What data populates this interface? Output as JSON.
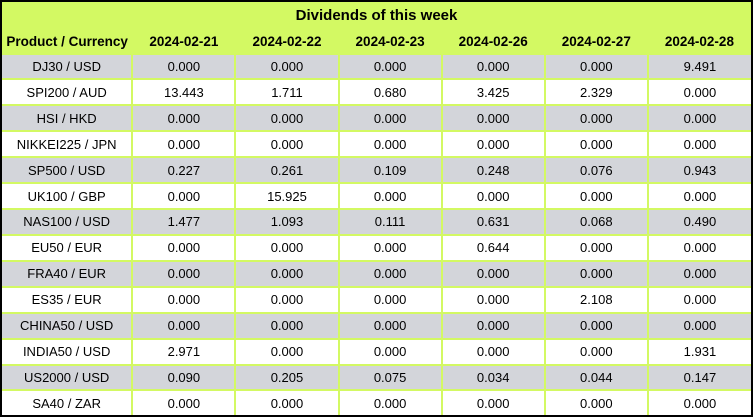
{
  "title": "Dividends of this week",
  "colors": {
    "header_bg": "#d3f963",
    "grid": "#d3f963",
    "row_alt_bg": "#d3d5da",
    "row_bg": "#ffffff",
    "outer_border": "#000000",
    "text": "#000000"
  },
  "table": {
    "columns": [
      "Product / Currency",
      "2024-02-21",
      "2024-02-22",
      "2024-02-23",
      "2024-02-26",
      "2024-02-27",
      "2024-02-28"
    ],
    "rows": [
      {
        "product": "DJ30 / USD",
        "values": [
          "0.000",
          "0.000",
          "0.000",
          "0.000",
          "0.000",
          "9.491"
        ]
      },
      {
        "product": "SPI200 / AUD",
        "values": [
          "13.443",
          "1.711",
          "0.680",
          "3.425",
          "2.329",
          "0.000"
        ]
      },
      {
        "product": "HSI / HKD",
        "values": [
          "0.000",
          "0.000",
          "0.000",
          "0.000",
          "0.000",
          "0.000"
        ]
      },
      {
        "product": "NIKKEI225 / JPN",
        "values": [
          "0.000",
          "0.000",
          "0.000",
          "0.000",
          "0.000",
          "0.000"
        ]
      },
      {
        "product": "SP500 / USD",
        "values": [
          "0.227",
          "0.261",
          "0.109",
          "0.248",
          "0.076",
          "0.943"
        ]
      },
      {
        "product": "UK100 / GBP",
        "values": [
          "0.000",
          "15.925",
          "0.000",
          "0.000",
          "0.000",
          "0.000"
        ]
      },
      {
        "product": "NAS100 / USD",
        "values": [
          "1.477",
          "1.093",
          "0.111",
          "0.631",
          "0.068",
          "0.490"
        ]
      },
      {
        "product": "EU50 / EUR",
        "values": [
          "0.000",
          "0.000",
          "0.000",
          "0.644",
          "0.000",
          "0.000"
        ]
      },
      {
        "product": "FRA40 / EUR",
        "values": [
          "0.000",
          "0.000",
          "0.000",
          "0.000",
          "0.000",
          "0.000"
        ]
      },
      {
        "product": "ES35 / EUR",
        "values": [
          "0.000",
          "0.000",
          "0.000",
          "0.000",
          "2.108",
          "0.000"
        ]
      },
      {
        "product": "CHINA50 / USD",
        "values": [
          "0.000",
          "0.000",
          "0.000",
          "0.000",
          "0.000",
          "0.000"
        ]
      },
      {
        "product": "INDIA50 / USD",
        "values": [
          "2.971",
          "0.000",
          "0.000",
          "0.000",
          "0.000",
          "1.931"
        ]
      },
      {
        "product": "US2000 / USD",
        "values": [
          "0.090",
          "0.205",
          "0.075",
          "0.034",
          "0.044",
          "0.147"
        ]
      },
      {
        "product": "SA40 / ZAR",
        "values": [
          "0.000",
          "0.000",
          "0.000",
          "0.000",
          "0.000",
          "0.000"
        ]
      }
    ]
  },
  "chart_data": {
    "type": "table",
    "title": "Dividends of this week",
    "columns": [
      "Product / Currency",
      "2024-02-21",
      "2024-02-22",
      "2024-02-23",
      "2024-02-26",
      "2024-02-27",
      "2024-02-28"
    ],
    "series": [
      {
        "name": "DJ30 / USD",
        "values": [
          0.0,
          0.0,
          0.0,
          0.0,
          0.0,
          9.491
        ]
      },
      {
        "name": "SPI200 / AUD",
        "values": [
          13.443,
          1.711,
          0.68,
          3.425,
          2.329,
          0.0
        ]
      },
      {
        "name": "HSI / HKD",
        "values": [
          0.0,
          0.0,
          0.0,
          0.0,
          0.0,
          0.0
        ]
      },
      {
        "name": "NIKKEI225 / JPN",
        "values": [
          0.0,
          0.0,
          0.0,
          0.0,
          0.0,
          0.0
        ]
      },
      {
        "name": "SP500 / USD",
        "values": [
          0.227,
          0.261,
          0.109,
          0.248,
          0.076,
          0.943
        ]
      },
      {
        "name": "UK100 / GBP",
        "values": [
          0.0,
          15.925,
          0.0,
          0.0,
          0.0,
          0.0
        ]
      },
      {
        "name": "NAS100 / USD",
        "values": [
          1.477,
          1.093,
          0.111,
          0.631,
          0.068,
          0.49
        ]
      },
      {
        "name": "EU50 / EUR",
        "values": [
          0.0,
          0.0,
          0.0,
          0.644,
          0.0,
          0.0
        ]
      },
      {
        "name": "FRA40 / EUR",
        "values": [
          0.0,
          0.0,
          0.0,
          0.0,
          0.0,
          0.0
        ]
      },
      {
        "name": "ES35 / EUR",
        "values": [
          0.0,
          0.0,
          0.0,
          0.0,
          2.108,
          0.0
        ]
      },
      {
        "name": "CHINA50 / USD",
        "values": [
          0.0,
          0.0,
          0.0,
          0.0,
          0.0,
          0.0
        ]
      },
      {
        "name": "INDIA50 / USD",
        "values": [
          2.971,
          0.0,
          0.0,
          0.0,
          0.0,
          1.931
        ]
      },
      {
        "name": "US2000 / USD",
        "values": [
          0.09,
          0.205,
          0.075,
          0.034,
          0.044,
          0.147
        ]
      },
      {
        "name": "SA40 / ZAR",
        "values": [
          0.0,
          0.0,
          0.0,
          0.0,
          0.0,
          0.0
        ]
      }
    ]
  }
}
